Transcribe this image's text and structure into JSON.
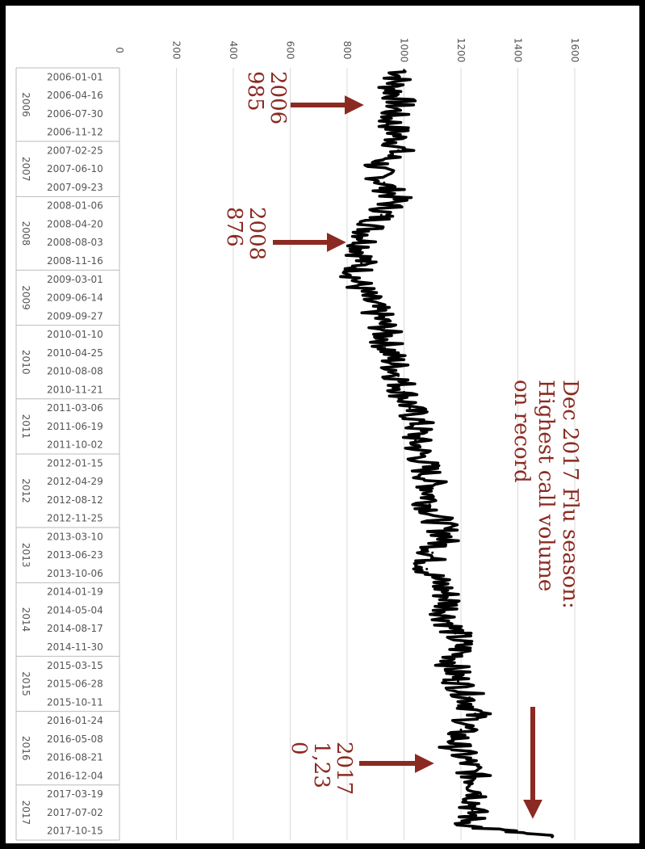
{
  "chart_data": {
    "type": "line",
    "orientation": "rotated 90 degrees clockwise (value axis runs left-to-right, time runs top-to-bottom)",
    "title": "",
    "xlabel": "",
    "ylabel": "",
    "ylim": [
      0,
      1600
    ],
    "y_ticks": [
      "0",
      "200",
      "400",
      "600",
      "800",
      "1000",
      "1200",
      "1400",
      "1600"
    ],
    "grid": true,
    "legend": "none",
    "line_color": "#000000",
    "annotation_color": "#8b2a22",
    "x_tick_labels": [
      "2006-01-01",
      "2006-04-16",
      "2006-07-30",
      "2006-11-12",
      "2007-02-25",
      "2007-06-10",
      "2007-09-23",
      "2008-01-06",
      "2008-04-20",
      "2008-08-03",
      "2008-11-16",
      "2009-03-01",
      "2009-06-14",
      "2009-09-27",
      "2010-01-10",
      "2010-04-25",
      "2010-08-08",
      "2010-11-21",
      "2011-03-06",
      "2011-06-19",
      "2011-10-02",
      "2012-01-15",
      "2012-04-29",
      "2012-08-12",
      "2012-11-25",
      "2013-03-10",
      "2013-06-23",
      "2013-10-06",
      "2014-01-19",
      "2014-05-04",
      "2014-08-17",
      "2014-11-30",
      "2015-03-15",
      "2015-06-28",
      "2015-10-11",
      "2016-01-24",
      "2016-05-08",
      "2016-08-21",
      "2016-12-04",
      "2017-03-19",
      "2017-07-02",
      "2017-10-15"
    ],
    "year_groups": [
      "2006",
      "2007",
      "2008",
      "2009",
      "2010",
      "2011",
      "2012",
      "2013",
      "2014",
      "2015",
      "2016",
      "2017"
    ],
    "series": [
      {
        "x": [
          "2006-01",
          "2006-04",
          "2006-07",
          "2006-10",
          "2007-01",
          "2007-04",
          "2007-07",
          "2007-10",
          "2008-01",
          "2008-04",
          "2008-07",
          "2008-10",
          "2009-01",
          "2009-04",
          "2009-07",
          "2009-10",
          "2010-01",
          "2010-04",
          "2010-07",
          "2010-10",
          "2011-01",
          "2011-04",
          "2011-07",
          "2011-10",
          "2012-01",
          "2012-04",
          "2012-07",
          "2012-10",
          "2013-01",
          "2013-04",
          "2013-07",
          "2013-10",
          "2014-01",
          "2014-04",
          "2014-07",
          "2014-10",
          "2015-01",
          "2015-04",
          "2015-07",
          "2015-10",
          "2016-01",
          "2016-04",
          "2016-07",
          "2016-10",
          "2017-01",
          "2017-04",
          "2017-07",
          "2017-10",
          "2017-12"
        ],
        "y": [
          1000,
          960,
          985,
          950,
          975,
          980,
          900,
          930,
          970,
          920,
          876,
          860,
          850,
          830,
          860,
          900,
          930,
          940,
          960,
          980,
          1000,
          1020,
          1050,
          1040,
          1060,
          1080,
          1100,
          1090,
          1120,
          1150,
          1100,
          1080,
          1130,
          1160,
          1150,
          1180,
          1200,
          1170,
          1190,
          1230,
          1250,
          1200,
          1180,
          1220,
          1250,
          1270,
          1240,
          1230,
          1520
        ]
      }
    ],
    "annotations": [
      {
        "lines": [
          "2006",
          "985"
        ]
      },
      {
        "lines": [
          "2008",
          "876"
        ]
      },
      {
        "lines": [
          "Dec 2017 Flu season:",
          "Highest call volume",
          "on record"
        ]
      },
      {
        "lines": [
          "2017",
          "1,23",
          "0"
        ]
      }
    ]
  }
}
